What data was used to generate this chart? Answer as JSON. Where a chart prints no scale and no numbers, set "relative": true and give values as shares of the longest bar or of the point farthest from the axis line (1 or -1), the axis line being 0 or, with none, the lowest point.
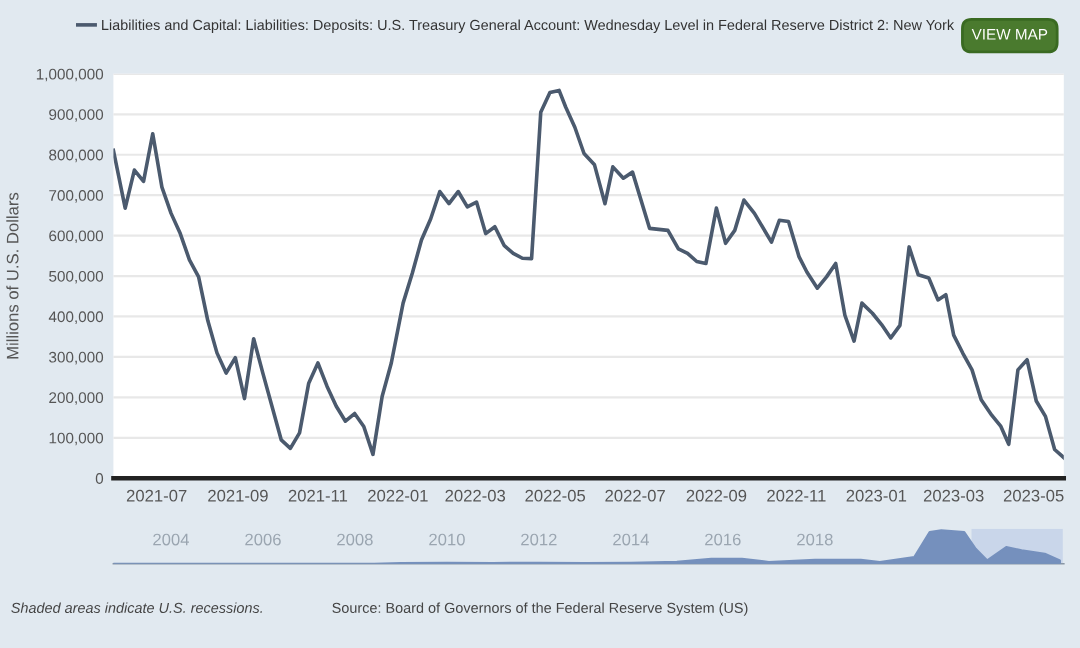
{
  "chart_data": [
    {
      "type": "line",
      "ylabel": "Millions of U.S. Dollars",
      "legend": "top left",
      "grid": "y",
      "annotations": [
        "VIEW MAP"
      ],
      "x": [
        "2021-05-29",
        "2021-06-07",
        "2021-06-14",
        "2021-06-21",
        "2021-06-28",
        "2021-07-05",
        "2021-07-12",
        "2021-07-19",
        "2021-07-26",
        "2021-08-02",
        "2021-08-09",
        "2021-08-16",
        "2021-08-23",
        "2021-08-30",
        "2021-09-06",
        "2021-09-13",
        "2021-09-20",
        "2021-10-04",
        "2021-10-11",
        "2021-10-18",
        "2021-10-25",
        "2021-11-01",
        "2021-11-08",
        "2021-11-15",
        "2021-11-22",
        "2021-11-29",
        "2021-12-06",
        "2021-12-13",
        "2021-12-20",
        "2021-12-27",
        "2022-01-05",
        "2022-01-12",
        "2022-01-19",
        "2022-01-26",
        "2022-02-02",
        "2022-02-09",
        "2022-02-16",
        "2022-02-23",
        "2022-03-02",
        "2022-03-09",
        "2022-03-16",
        "2022-03-23",
        "2022-03-30",
        "2022-04-06",
        "2022-04-13",
        "2022-04-20",
        "2022-04-27",
        "2022-05-04",
        "2022-05-09",
        "2022-05-16",
        "2022-05-23",
        "2022-05-31",
        "2022-06-08",
        "2022-06-14",
        "2022-06-22",
        "2022-06-29",
        "2022-07-12",
        "2022-07-26",
        "2022-08-03",
        "2022-08-10",
        "2022-08-17",
        "2022-08-24",
        "2022-09-01",
        "2022-09-08",
        "2022-09-15",
        "2022-09-22",
        "2022-09-30",
        "2022-10-13",
        "2022-10-19",
        "2022-10-26",
        "2022-11-03",
        "2022-11-09",
        "2022-11-17",
        "2022-11-24",
        "2022-12-01",
        "2022-12-08",
        "2022-12-15",
        "2022-12-21",
        "2022-12-29",
        "2023-01-05",
        "2023-01-12",
        "2023-01-19",
        "2023-01-26",
        "2023-02-02",
        "2023-02-10",
        "2023-02-17",
        "2023-02-23",
        "2023-03-01",
        "2023-03-08",
        "2023-03-15",
        "2023-03-22",
        "2023-03-30",
        "2023-04-06",
        "2023-04-12",
        "2023-04-19",
        "2023-04-26",
        "2023-05-03",
        "2023-05-10",
        "2023-05-17",
        "2023-05-24"
      ],
      "series": [
        {
          "name": "Liabilities and Capital: Liabilities: Deposits: U.S. Treasury General Account: Wednesday Level in Federal Reserve District 2: New York",
          "color": "#4b5a6e",
          "values": [
            811000,
            668000,
            762000,
            734000,
            852000,
            720000,
            655000,
            605000,
            540000,
            498000,
            390000,
            310000,
            260000,
            298000,
            197000,
            345000,
            260000,
            95000,
            74000,
            112000,
            235000,
            285000,
            227000,
            178000,
            141000,
            160000,
            128000,
            59000,
            202000,
            285000,
            433000,
            507000,
            589000,
            641000,
            709000,
            679000,
            709000,
            671000,
            683000,
            605000,
            622000,
            576000,
            556000,
            544000,
            543000,
            905000,
            954000,
            959000,
            918000,
            868000,
            803000,
            775000,
            679000,
            770000,
            742000,
            757000,
            618000,
            613000,
            567000,
            556000,
            536000,
            531000,
            668000,
            581000,
            613000,
            688000,
            655000,
            584000,
            638000,
            635000,
            548000,
            510000,
            470000,
            498000,
            531000,
            403000,
            339000,
            433000,
            408000,
            380000,
            347000,
            378000,
            572000,
            503000,
            495000,
            441000,
            454000,
            354000,
            309000,
            268000,
            194000,
            156000,
            128000,
            84000,
            268000,
            293000,
            191000,
            153000,
            71000,
            51000
          ]
        }
      ],
      "xlim": [
        "2021-05-29",
        "2023-05-24"
      ],
      "xticks": [
        "2021-07",
        "2021-09",
        "2021-11",
        "2022-01",
        "2022-03",
        "2022-05",
        "2022-07",
        "2022-09",
        "2022-11",
        "2023-01",
        "2023-03",
        "2023-05"
      ],
      "ylim": [
        0,
        1000000
      ],
      "yticks": [
        0,
        {
          "value": 100000,
          "label": "100,000"
        },
        {
          "value": 200000,
          "label": "200,000"
        },
        {
          "value": 300000,
          "label": "300,000"
        },
        {
          "value": 400000,
          "label": "400,000"
        },
        {
          "value": 500000,
          "label": "500,000"
        },
        {
          "value": 600000,
          "label": "600,000"
        },
        {
          "value": 700000,
          "label": "700,000"
        },
        {
          "value": 800000,
          "label": "800,000"
        },
        {
          "value": 900000,
          "label": "900,000"
        },
        {
          "value": 1000000,
          "label": "1,000,000"
        }
      ]
    },
    {
      "type": "area",
      "relative": true,
      "tick_labels": "x",
      "annotations": [
        "Shaded areas indicate U.S. recessions.",
        "Source: Board of Governors of the Federal Reserve System (US)"
      ],
      "x": [
        "2002-10",
        "2008-06",
        "2009-01",
        "2010-01",
        "2011-01",
        "2012-01",
        "2013-01",
        "2014-01",
        "2015-01",
        "2015-10",
        "2016-06",
        "2017-01",
        "2018-01",
        "2019-01",
        "2019-06",
        "2020-03",
        "2020-07",
        "2020-10",
        "2021-04",
        "2021-07",
        "2021-10",
        "2022-03",
        "2022-07",
        "2023-01",
        "2023-05"
      ],
      "series": [
        {
          "color": "#7590bd",
          "values": [
            0,
            0,
            0.02,
            0.03,
            0.02,
            0.03,
            0.02,
            0.03,
            0.06,
            0.15,
            0.15,
            0.05,
            0.12,
            0.12,
            0.05,
            0.2,
            0.95,
            1,
            0.95,
            0.45,
            0.1,
            0.5,
            0.4,
            0.3,
            0.1
          ]
        }
      ],
      "xlim": [
        "2002-10",
        "2023-06"
      ],
      "xticks": [
        "2004",
        "2006",
        "2008",
        "2010",
        "2012",
        "2014",
        "2016",
        "2018"
      ],
      "bands": [
        {
          "axis": "x",
          "from": "2021-05-29",
          "to": "2023-05-24",
          "color": "#c9d6ea"
        }
      ]
    }
  ]
}
